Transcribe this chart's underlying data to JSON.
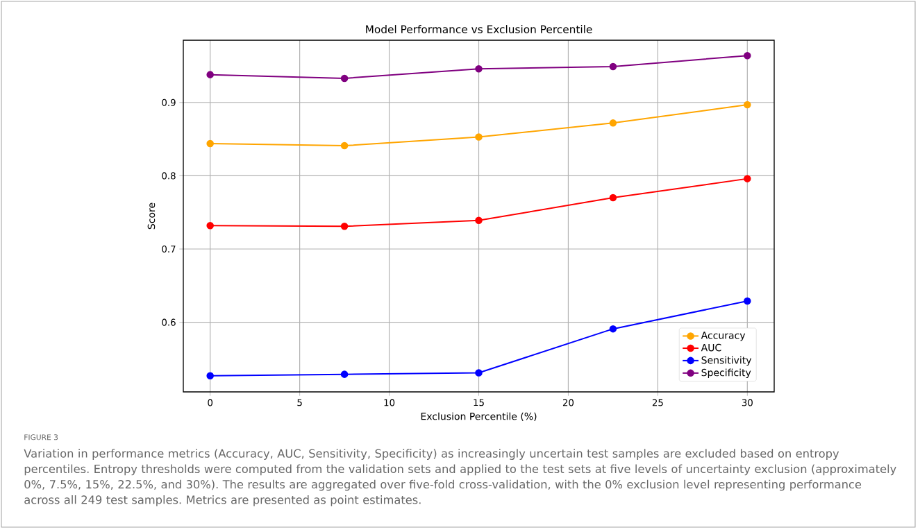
{
  "chart_data": {
    "type": "line",
    "title": "Model Performance vs Exclusion Percentile",
    "xlabel": "Exclusion Percentile (%)",
    "ylabel": "Score",
    "x": [
      0,
      7.5,
      15,
      22.5,
      30
    ],
    "series": [
      {
        "name": "Accuracy",
        "color": "#ffa500",
        "values": [
          0.844,
          0.841,
          0.853,
          0.872,
          0.897
        ]
      },
      {
        "name": "AUC",
        "color": "#ff0000",
        "values": [
          0.732,
          0.731,
          0.739,
          0.77,
          0.796
        ]
      },
      {
        "name": "Sensitivity",
        "color": "#0000ff",
        "values": [
          0.527,
          0.529,
          0.531,
          0.591,
          0.629
        ]
      },
      {
        "name": "Specificity",
        "color": "#800080",
        "values": [
          0.938,
          0.933,
          0.946,
          0.949,
          0.964
        ]
      }
    ],
    "xlim": [
      -1.5,
      31.5
    ],
    "ylim": [
      0.505,
      0.985
    ],
    "xticks": [
      0,
      5,
      10,
      15,
      20,
      25,
      30
    ],
    "yticks": [
      0.6,
      0.7,
      0.8,
      0.9
    ],
    "grid": true,
    "legend": "bottom right",
    "marker": "circle",
    "line_style": "solid",
    "annotations": [
      "FIGURE 3",
      "Variation in performance metrics (Accuracy, AUC, Sensitivity, Specificity) as increasingly uncertain test samples are excluded based on entropy percentiles. Entropy thresholds were computed from the validation sets and applied to the test sets at five levels of uncertainty exclusion (approximately 0%, 7.5%, 15%, 22.5%, and 30%). The results are aggregated over five-fold cross-validation, with the 0% exclusion level representing performance across all 249 test samples. Metrics are presented as point estimates."
    ]
  }
}
